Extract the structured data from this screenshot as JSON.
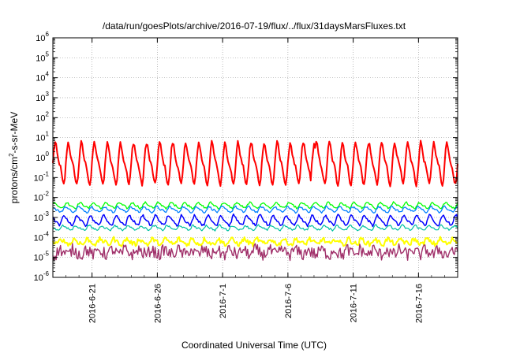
{
  "chart_data": {
    "type": "line",
    "title": "/data/run/goesPlots/archive/2016-07-19/flux/../flux/31daysMarsFluxes.txt",
    "xlabel": "Coordinated Universal Time (UTC)",
    "ylabel": {
      "base": "protons/cm",
      "sup": "2",
      "rest": "-s-sr-MeV"
    },
    "y_scale": "log",
    "ylim_exponents": [
      -6,
      6
    ],
    "y_ticks": [
      {
        "base": "10",
        "exp": "-6",
        "value": -6
      },
      {
        "base": "10",
        "exp": "-5",
        "value": -5
      },
      {
        "base": "10",
        "exp": "-4",
        "value": -4
      },
      {
        "base": "10",
        "exp": "-3",
        "value": -3
      },
      {
        "base": "10",
        "exp": "-2",
        "value": -2
      },
      {
        "base": "10",
        "exp": "-1",
        "value": -1
      },
      {
        "base": "10",
        "exp": "0",
        "value": 0
      },
      {
        "base": "10",
        "exp": "1",
        "value": 1
      },
      {
        "base": "10",
        "exp": "2",
        "value": 2
      },
      {
        "base": "10",
        "exp": "3",
        "value": 3
      },
      {
        "base": "10",
        "exp": "4",
        "value": 4
      },
      {
        "base": "10",
        "exp": "5",
        "value": 5
      },
      {
        "base": "10",
        "exp": "6",
        "value": 6
      }
    ],
    "xlim": [
      "2016-06-18",
      "2016-07-19"
    ],
    "x_ticks": [
      "2016-6-21",
      "2016-6-26",
      "2016-7-1",
      "2016-7-6",
      "2016-7-11",
      "2016-7-16"
    ],
    "grid": true,
    "legend": "none",
    "series": [
      {
        "color": "#ff0000",
        "stroke": 2.0,
        "typical": 0.5,
        "daily_swing_decades": 0.9,
        "noise_decades": 0.1,
        "spikes": [
          {
            "date": "2016-07-08",
            "value": 5
          }
        ]
      },
      {
        "color": "#00ff00",
        "stroke": 1.3,
        "typical": 0.004,
        "daily_swing_decades": 0.12,
        "noise_decades": 0.05
      },
      {
        "color": "#0080ff",
        "stroke": 1.3,
        "typical": 0.0025,
        "daily_swing_decades": 0.12,
        "noise_decades": 0.05
      },
      {
        "color": "#0000ff",
        "stroke": 1.5,
        "typical": 0.0007,
        "daily_swing_decades": 0.22,
        "noise_decades": 0.06
      },
      {
        "color": "#00c0a0",
        "stroke": 1.2,
        "typical": 0.0003,
        "daily_swing_decades": 0.1,
        "noise_decades": 0.05
      },
      {
        "color": "#ffff00",
        "stroke": 2.0,
        "typical": 6e-05,
        "daily_swing_decades": 0.12,
        "noise_decades": 0.12
      },
      {
        "color": "#a0306a",
        "stroke": 1.4,
        "typical": 1.8e-05,
        "daily_swing_decades": 0.12,
        "noise_decades": 0.3
      }
    ]
  }
}
